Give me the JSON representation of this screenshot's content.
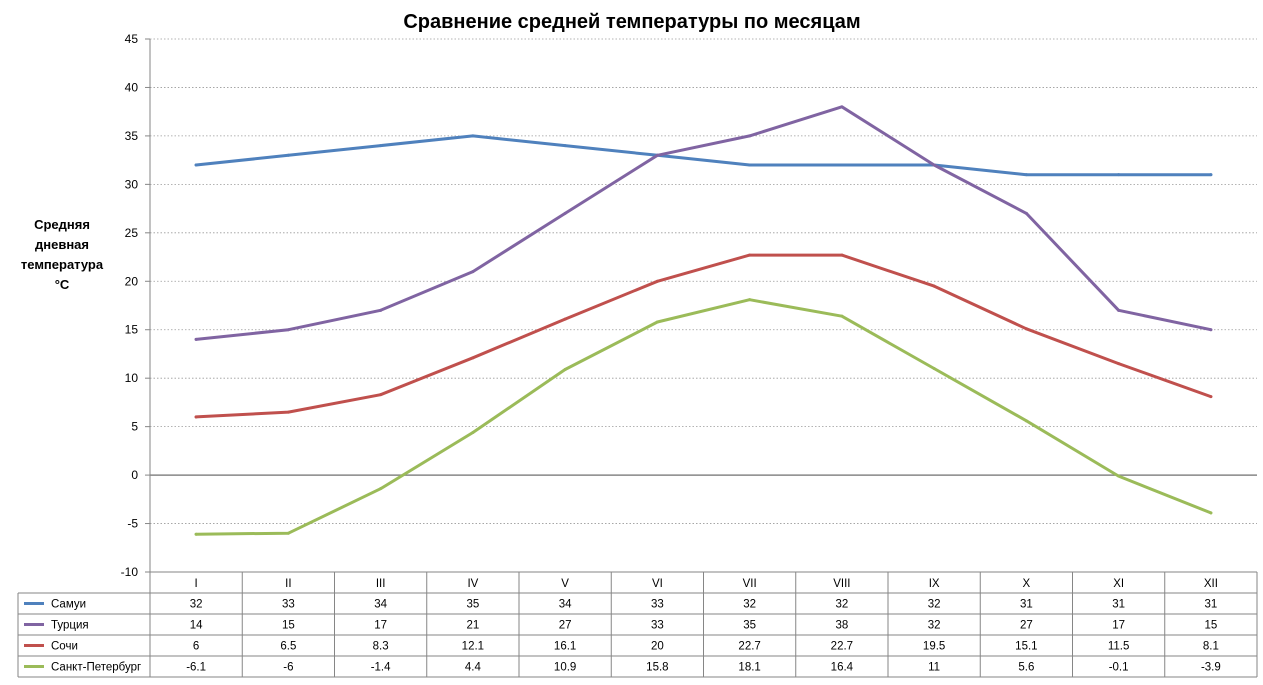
{
  "chart_data": {
    "type": "line",
    "title": "Сравнение средней температуры по месяцам",
    "ylabel_lines": [
      "Средняя",
      "дневная",
      "температура",
      "°C"
    ],
    "xlabel": "",
    "categories": [
      "I",
      "II",
      "III",
      "IV",
      "V",
      "VI",
      "VII",
      "VIII",
      "IX",
      "X",
      "XI",
      "XII"
    ],
    "ylim": [
      -10,
      45
    ],
    "yticks": [
      -10,
      -5,
      0,
      5,
      10,
      15,
      20,
      25,
      30,
      35,
      40,
      45
    ],
    "ytick_labels": [
      "-10",
      "-5",
      "0",
      "5",
      "10",
      "15",
      "20",
      "25",
      "30",
      "35",
      "40",
      "45"
    ],
    "grid": "horizontal-dotted",
    "legend": "data-table-below",
    "series": [
      {
        "name": "Самуи",
        "color": "#4f81bd",
        "values": [
          32,
          33,
          34,
          35,
          34,
          33,
          32,
          32,
          32,
          31,
          31,
          31
        ],
        "labels": [
          "32",
          "33",
          "34",
          "35",
          "34",
          "33",
          "32",
          "32",
          "32",
          "31",
          "31",
          "31"
        ]
      },
      {
        "name": "Турция",
        "color": "#8064a2",
        "values": [
          14,
          15,
          17,
          21,
          27,
          33,
          35,
          38,
          32,
          27,
          17,
          15
        ],
        "labels": [
          "14",
          "15",
          "17",
          "21",
          "27",
          "33",
          "35",
          "38",
          "32",
          "27",
          "17",
          "15"
        ]
      },
      {
        "name": "Сочи",
        "color": "#c0504d",
        "values": [
          6,
          6.5,
          8.3,
          12.1,
          16.1,
          20,
          22.7,
          22.7,
          19.5,
          15.1,
          11.5,
          8.1
        ],
        "labels": [
          "6",
          "6.5",
          "8.3",
          "12.1",
          "16.1",
          "20",
          "22.7",
          "22.7",
          "19.5",
          "15.1",
          "11.5",
          "8.1"
        ]
      },
      {
        "name": "Санкт-Петербург",
        "color": "#9bbb59",
        "values": [
          -6.1,
          -6,
          -1.4,
          4.4,
          10.9,
          15.8,
          18.1,
          16.4,
          11,
          5.6,
          -0.1,
          -3.9
        ],
        "labels": [
          "-6.1",
          "-6",
          "-1.4",
          "4.4",
          "10.9",
          "15.8",
          "18.1",
          "16.4",
          "11",
          "5.6",
          "-0.1",
          "-3.9"
        ]
      }
    ]
  }
}
